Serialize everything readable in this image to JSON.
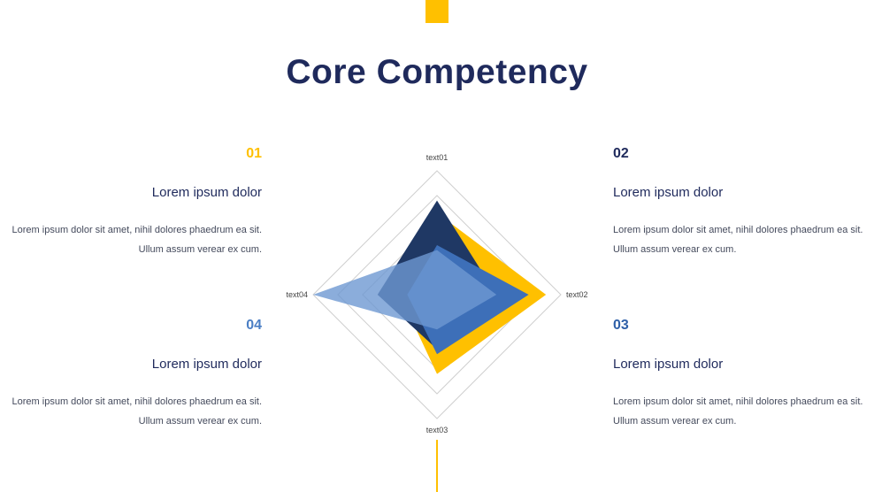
{
  "title": "Core Competency",
  "colors": {
    "accent": "#FFC000",
    "navy": "#1F2A5C",
    "blue": "#4A7EC4"
  },
  "items": [
    {
      "number": "01",
      "heading": "Lorem ipsum dolor",
      "body": "Lorem ipsum dolor sit amet, nihil dolores phaedrum ea sit. Ullum assum verear ex cum.",
      "color": "#FFC000"
    },
    {
      "number": "02",
      "heading": "Lorem ipsum dolor",
      "body": "Lorem ipsum dolor sit amet, nihil dolores phaedrum ea sit. Ullum assum verear ex cum.",
      "color": "#1F2A5C"
    },
    {
      "number": "03",
      "heading": "Lorem ipsum dolor",
      "body": "Lorem ipsum dolor sit amet, nihil dolores phaedrum ea sit. Ullum assum verear ex cum.",
      "color": "#2E5FA8"
    },
    {
      "number": "04",
      "heading": "Lorem ipsum dolor",
      "body": "Lorem ipsum dolor sit amet, nihil dolores phaedrum ea sit. Ullum assum verear ex cum.",
      "color": "#4A7EC4"
    }
  ],
  "chart_data": {
    "type": "radar",
    "axes": [
      "text01",
      "text02",
      "text03",
      "text04"
    ],
    "rmax": 5,
    "grid_levels": 5,
    "series": [
      {
        "values": [
          3.3,
          4.4,
          3.2,
          1.5
        ],
        "color": "#FFC000",
        "opacity": 1.0
      },
      {
        "values": [
          3.8,
          2.4,
          2.2,
          2.4
        ],
        "color": "#1F3864",
        "opacity": 1.0
      },
      {
        "values": [
          2.0,
          3.7,
          2.4,
          1.2
        ],
        "color": "#3D6FB8",
        "opacity": 1.0
      },
      {
        "values": [
          1.8,
          2.4,
          1.4,
          5.0
        ],
        "color": "#6E98D2",
        "opacity": 0.8
      }
    ]
  }
}
